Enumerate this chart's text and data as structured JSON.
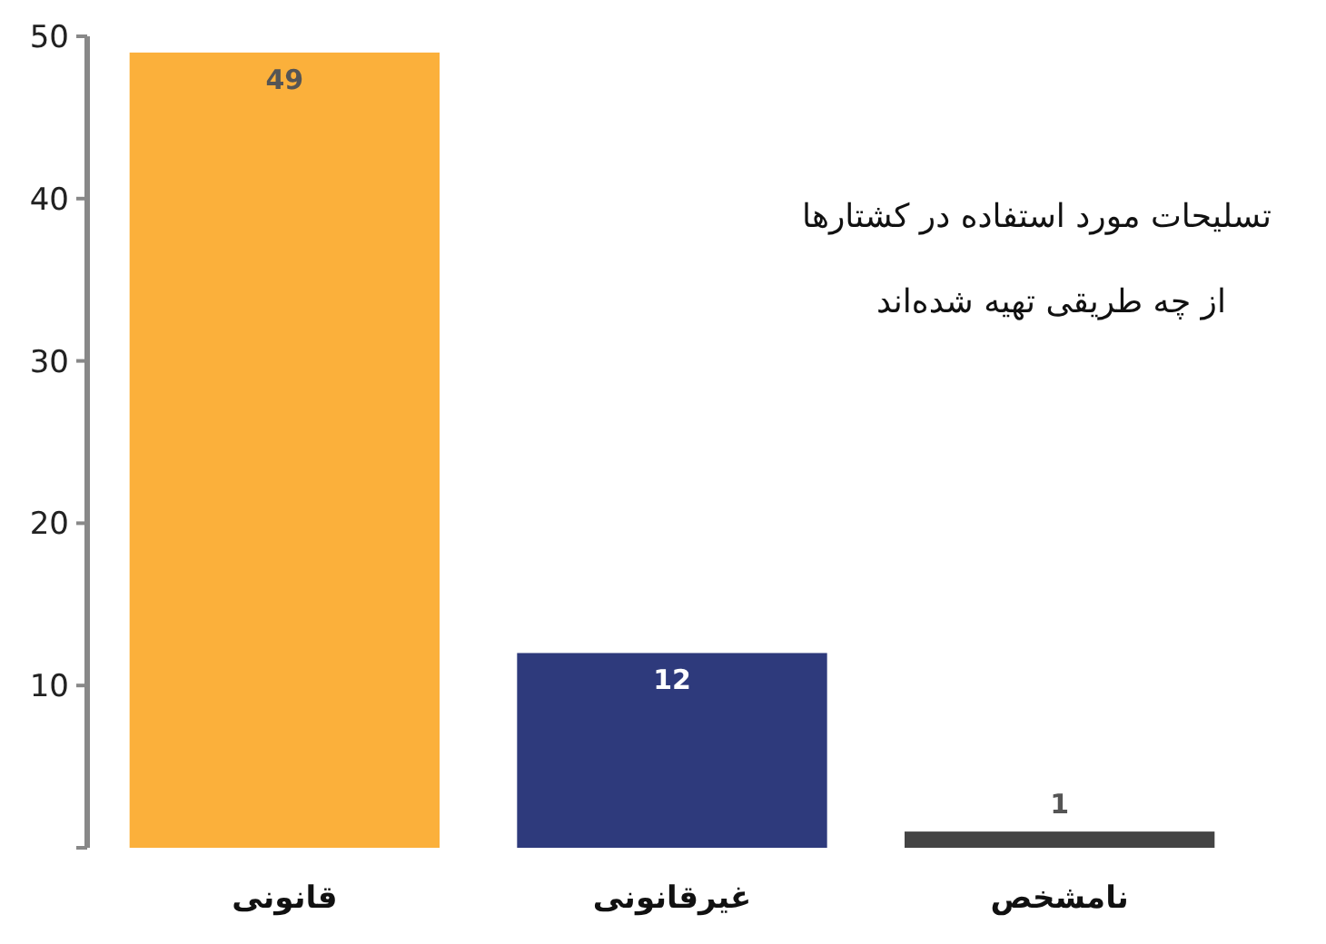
{
  "chart_data": {
    "type": "bar",
    "title": "تسلیحات مورد استفاده در کشتارها",
    "subtitle": "از چه طریقی تهیه شده‌اند",
    "categories": [
      "قانونی",
      "غیرقانونی",
      "نامشخص"
    ],
    "values": [
      49,
      12,
      1
    ],
    "colors": [
      "#fbb03b",
      "#2e3a7c",
      "#444444"
    ],
    "ylim": [
      0,
      50
    ],
    "yticks": [
      {
        "value": 0,
        "label": null
      },
      10,
      20,
      30,
      40,
      50
    ],
    "data_labels": true
  }
}
